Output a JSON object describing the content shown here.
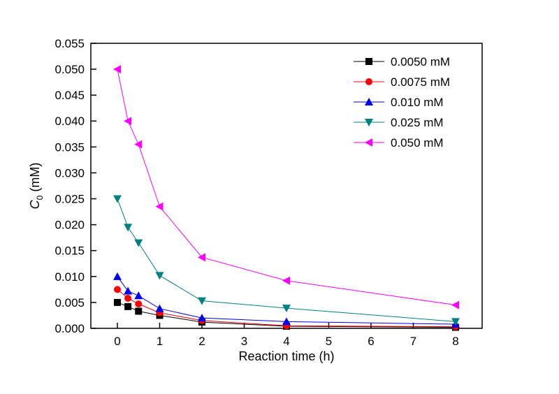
{
  "figure": {
    "xlabel": "Reaction time (h)",
    "ylabel": {
      "symbol": "C",
      "sub": "0",
      "rest": " (mM)"
    }
  },
  "chart_data": {
    "type": "line",
    "title": "",
    "xlabel": "Reaction time (h)",
    "ylabel": "C_0 (mM)",
    "xlim": [
      0,
      8
    ],
    "ylim": [
      0,
      0.055
    ],
    "grid": false,
    "legend_position": "top-right",
    "x_ticks": [
      "0",
      "1",
      "2",
      "3",
      "4",
      "5",
      "6",
      "7",
      "8"
    ],
    "y_ticks": [
      "0.000",
      "0.005",
      "0.010",
      "0.015",
      "0.020",
      "0.025",
      "0.030",
      "0.035",
      "0.040",
      "0.045",
      "0.050",
      "0.055"
    ],
    "x": [
      0,
      0.25,
      0.5,
      1,
      2,
      4,
      8
    ],
    "series": [
      {
        "name": "0.0050 mM",
        "color": "#000000",
        "marker": "square",
        "values": [
          0.005,
          0.0042,
          0.0033,
          0.0025,
          0.0012,
          0.0004,
          0.0002
        ]
      },
      {
        "name": "0.0075 mM",
        "color": "#ff0000",
        "marker": "circle",
        "values": [
          0.0075,
          0.0058,
          0.0047,
          0.003,
          0.0015,
          0.0005,
          0.0003
        ]
      },
      {
        "name": "0.010 mM",
        "color": "#0000ee",
        "marker": "triangle-up",
        "values": [
          0.01,
          0.0072,
          0.0063,
          0.0038,
          0.002,
          0.0013,
          0.0008
        ]
      },
      {
        "name": "0.025 mM",
        "color": "#008080",
        "marker": "triangle-down",
        "values": [
          0.025,
          0.0195,
          0.0165,
          0.0102,
          0.0053,
          0.0039,
          0.0013
        ]
      },
      {
        "name": "0.050 mM",
        "color": "#ff00ff",
        "marker": "triangle-left",
        "values": [
          0.05,
          0.04,
          0.0355,
          0.0235,
          0.0137,
          0.0092,
          0.0045
        ]
      }
    ]
  }
}
